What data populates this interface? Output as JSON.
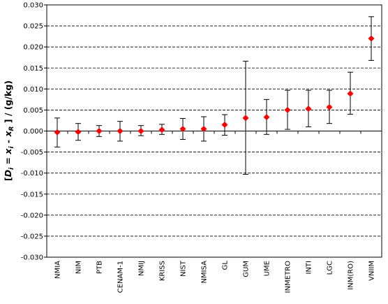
{
  "chart_data": {
    "type": "scatter",
    "title": "",
    "xlabel": "",
    "ylabel": {
      "open": "[",
      "D": "D",
      "i1": "i",
      "eq": " = ",
      "x1": "x",
      "i2": "i",
      "minus": " - ",
      "x2": "x",
      "R": "R",
      "close": " ] / (g/kg)"
    },
    "ylim": [
      -0.03,
      0.03
    ],
    "yticks": [
      0.03,
      0.025,
      0.02,
      0.015,
      0.01,
      0.005,
      0.0,
      -0.005,
      -0.01,
      -0.015,
      -0.02,
      -0.025,
      -0.03
    ],
    "ytick_labels": [
      "0.030",
      "0.025",
      "0.020",
      "0.015",
      "0.010",
      "0.005",
      "0.000",
      "-0.005",
      "-0.010",
      "-0.015",
      "-0.020",
      "-0.025",
      "-0.030"
    ],
    "grid": true,
    "legend": "none",
    "marker": "diamond",
    "marker_color": "#ff0000",
    "errorbar_color": "#000000",
    "categories": [
      "NMIA",
      "NIM",
      "PTB",
      "CENAM-1",
      "NMIJ",
      "KRISS",
      "NIST",
      "NMISA",
      "GL",
      "GUM",
      "UME",
      "INMETRO",
      "INTI",
      "LGC",
      "INM(RO)",
      "VNIIM"
    ],
    "values": [
      -0.0003,
      -0.0002,
      0.0,
      0.0,
      0.0,
      0.0003,
      0.0005,
      0.0005,
      0.0015,
      0.0031,
      0.0033,
      0.005,
      0.0053,
      0.0057,
      0.0089,
      0.022
    ],
    "error_low": [
      -0.0038,
      -0.0022,
      -0.0013,
      -0.0024,
      -0.0011,
      -0.0008,
      -0.002,
      -0.0024,
      -0.001,
      -0.0103,
      -0.0008,
      0.0004,
      0.001,
      0.0018,
      0.004,
      0.0168
    ],
    "error_high": [
      0.0031,
      0.0018,
      0.0013,
      0.0023,
      0.0013,
      0.0016,
      0.003,
      0.0034,
      0.0039,
      0.0166,
      0.0075,
      0.0097,
      0.0097,
      0.0097,
      0.014,
      0.0272
    ]
  }
}
